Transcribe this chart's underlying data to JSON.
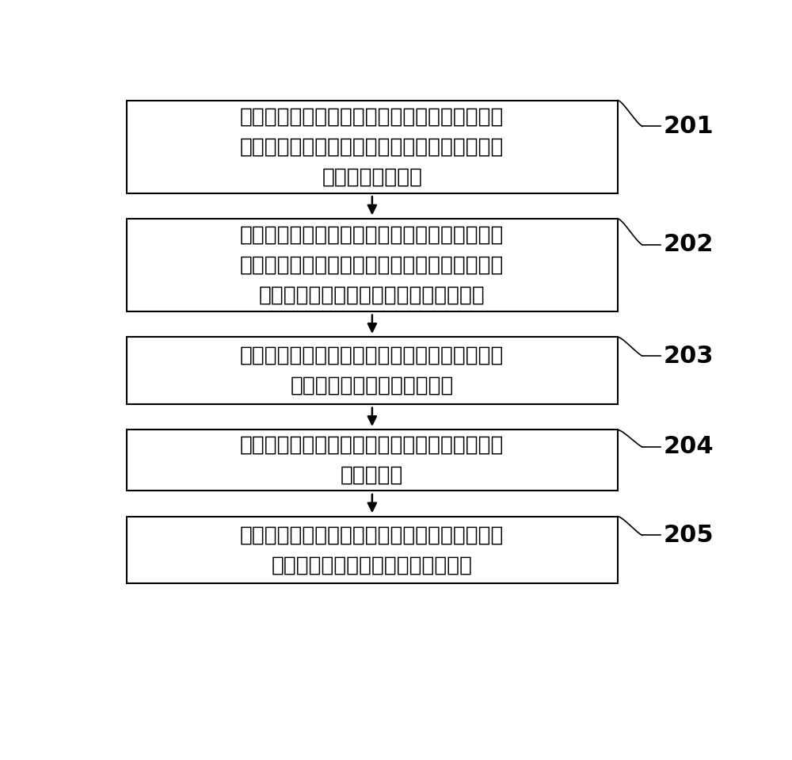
{
  "boxes": [
    {
      "label": "内容清单服务器获取第一超级节点发送的数据请\n求，请求中携带目标数据的标识及请求目标数据\n的第一节点的标识",
      "step": "201"
    },
    {
      "label": "内容清单服务器通过查询第一内容清单，确定目\n标数据对应的目标边缘服务器，其中，第一内容\n清单中包括边缘服务器与内容的映射关系",
      "step": "202"
    },
    {
      "label": "内容清单服务器通过查询第二内容清单，确定与\n目标数据对应的目标超级节点",
      "step": "203"
    },
    {
      "label": "确定目标边缘服务器当前的延时与带宽均优于目\n标超级节点",
      "step": "204"
    },
    {
      "label": "将数据请求定向至目标边缘服务器，以使目标边\n缘服务器将目标数据发送至第一节点",
      "step": "205"
    }
  ],
  "box_color": "#ffffff",
  "box_edge_color": "#000000",
  "arrow_color": "#000000",
  "step_label_color": "#000000",
  "background_color": "#ffffff",
  "font_size": 19,
  "step_font_size": 22
}
